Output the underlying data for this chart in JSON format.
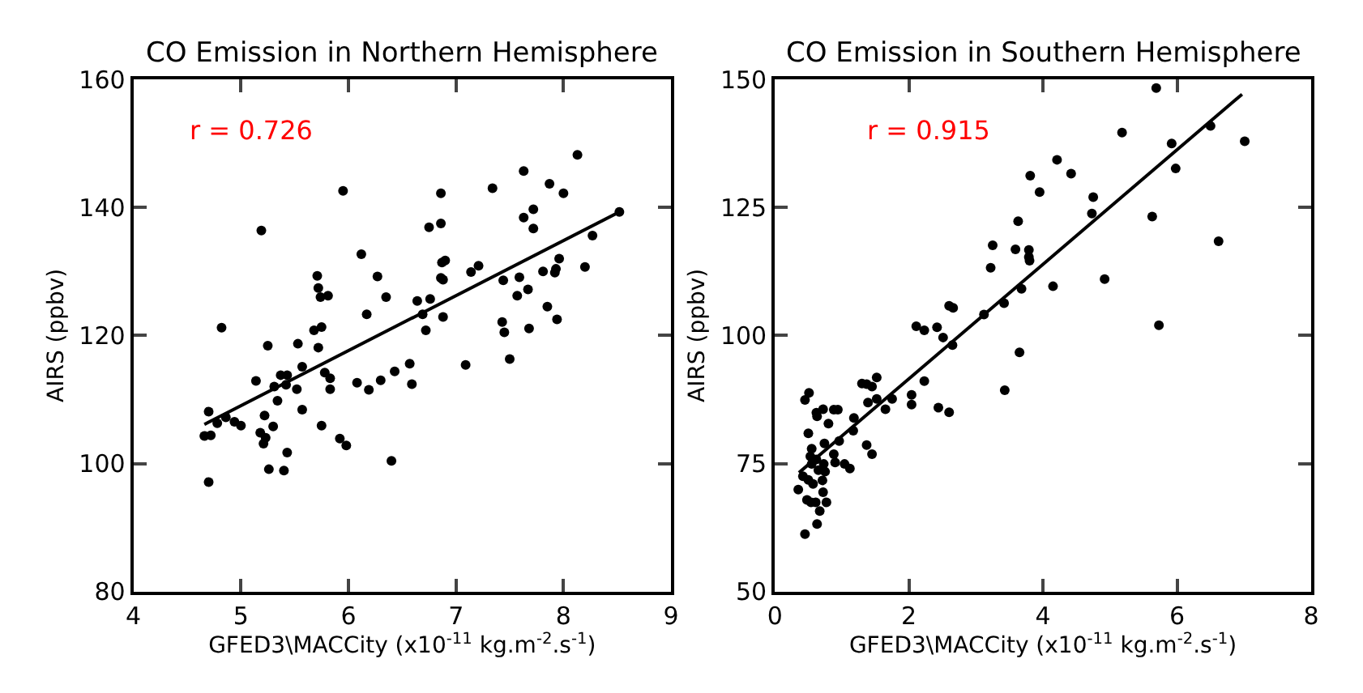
{
  "chart_data": [
    {
      "type": "scatter",
      "title": "CO Emission in Northern Hemisphere",
      "xlabel": "GFED3\\MACCity (x10$^{-11}$ kg.m$^{-2}$.s$^{-1}$)",
      "ylabel": "AIRS (ppbv)",
      "annotations": [
        "r = 0.726"
      ],
      "xlim": [
        4,
        9
      ],
      "xticks": [
        4,
        5,
        6,
        7,
        8,
        9
      ],
      "ylim": [
        80,
        160
      ],
      "yticks": [
        80,
        100,
        120,
        140,
        160
      ],
      "series": [
        {
          "color": "#000000",
          "marker": "circle",
          "x": [
            8.13,
            7.63,
            7.87,
            7.34,
            5.95,
            6.86,
            8.0,
            7.72,
            8.52,
            6.86,
            7.63,
            6.75,
            7.72,
            5.19,
            8.27,
            6.12,
            6.87,
            6.9,
            7.21,
            7.14,
            8.2,
            7.81,
            7.96,
            7.93,
            7.92,
            7.59,
            7.44,
            5.71,
            6.27,
            6.86,
            6.88,
            5.72,
            5.74,
            5.81,
            6.35,
            7.67,
            7.57,
            6.76,
            6.64,
            7.85,
            6.17,
            6.69,
            6.88,
            7.94,
            7.43,
            4.82,
            5.75,
            7.68,
            6.72,
            7.45,
            5.68,
            5.25,
            5.53,
            5.72,
            7.5,
            5.57,
            6.57,
            7.09,
            5.78,
            5.37,
            5.43,
            5.14,
            5.83,
            6.08,
            6.19,
            6.3,
            6.43,
            6.59,
            5.31,
            5.52,
            5.42,
            5.83,
            5.34,
            4.7,
            5.57,
            4.86,
            4.78,
            4.94,
            5.0,
            5.22,
            4.66,
            4.72,
            5.18,
            5.23,
            5.3,
            5.75,
            5.21,
            5.92,
            5.98,
            5.43,
            6.4,
            5.26,
            5.4,
            4.7
          ],
          "values": [
            148.2,
            145.7,
            143.7,
            143.0,
            142.6,
            142.2,
            142.2,
            139.7,
            139.3,
            137.5,
            138.4,
            136.9,
            136.7,
            136.4,
            135.6,
            132.7,
            131.4,
            131.7,
            130.9,
            129.9,
            130.7,
            130.0,
            132.0,
            130.4,
            129.8,
            129.1,
            128.6,
            129.3,
            129.2,
            129.0,
            128.7,
            127.4,
            126.0,
            126.2,
            126.0,
            127.2,
            126.2,
            125.7,
            125.4,
            124.5,
            123.3,
            123.3,
            122.9,
            122.5,
            122.1,
            121.2,
            121.3,
            121.1,
            120.8,
            120.5,
            120.8,
            118.4,
            118.7,
            118.1,
            116.3,
            115.1,
            115.6,
            115.4,
            114.2,
            113.8,
            113.8,
            112.9,
            113.3,
            112.6,
            111.5,
            113.0,
            114.4,
            112.4,
            112.0,
            111.6,
            112.3,
            111.6,
            109.8,
            108.1,
            108.4,
            107.2,
            106.3,
            106.5,
            105.9,
            107.5,
            104.3,
            104.4,
            104.8,
            104.0,
            105.8,
            105.9,
            103.1,
            103.9,
            102.8,
            101.7,
            100.4,
            99.1,
            98.9,
            97.1
          ]
        },
        {
          "type": "line",
          "color": "#000000",
          "x": [
            4.66,
            8.52
          ],
          "values": [
            106.1,
            139.3
          ]
        }
      ]
    },
    {
      "type": "scatter",
      "title": "CO Emission in Southern Hemisphere",
      "xlabel": "GFED3\\MACCity (x10$^{-11}$ kg.m$^{-2}$.s$^{-1}$)",
      "ylabel": "AIRS (ppbv)",
      "annotations": [
        "r = 0.915"
      ],
      "xlim": [
        0,
        8
      ],
      "xticks": [
        0,
        2,
        4,
        6,
        8
      ],
      "ylim": [
        50,
        150
      ],
      "yticks": [
        50,
        75,
        100,
        125,
        150
      ],
      "series": [
        {
          "color": "#000000",
          "marker": "circle",
          "x": [
            5.69,
            5.18,
            6.5,
            5.92,
            7.01,
            4.21,
            3.81,
            4.42,
            5.98,
            3.95,
            4.75,
            4.73,
            5.63,
            3.63,
            3.25,
            6.62,
            3.59,
            3.79,
            3.79,
            3.8,
            3.22,
            4.92,
            4.15,
            3.68,
            3.42,
            2.6,
            2.66,
            3.12,
            2.11,
            2.23,
            2.42,
            2.51,
            5.73,
            2.65,
            3.65,
            2.23,
            3.43,
            2.04,
            2.04,
            2.44,
            2.6,
            1.52,
            1.45,
            1.3,
            1.37,
            1.39,
            1.52,
            1.75,
            1.65,
            1.18,
            1.17,
            0.51,
            0.45,
            0.62,
            0.63,
            0.72,
            0.88,
            0.94,
            0.8,
            0.5,
            0.96,
            0.74,
            1.37,
            0.55,
            0.53,
            0.62,
            0.88,
            1.45,
            0.73,
            0.9,
            1.04,
            1.12,
            0.55,
            0.65,
            0.75,
            0.42,
            0.5,
            0.57,
            0.71,
            0.35,
            0.72,
            0.48,
            0.54,
            0.61,
            0.77,
            0.67,
            0.63,
            0.45
          ],
          "values": [
            148.3,
            139.6,
            140.9,
            137.5,
            137.9,
            134.3,
            131.2,
            131.6,
            132.6,
            128.0,
            127.0,
            123.8,
            123.2,
            122.3,
            117.6,
            118.4,
            116.8,
            116.7,
            115.3,
            114.6,
            113.2,
            111.0,
            109.6,
            109.1,
            106.3,
            105.8,
            105.4,
            104.1,
            101.8,
            101.0,
            101.6,
            99.6,
            102.0,
            98.1,
            96.7,
            91.1,
            89.3,
            88.4,
            86.5,
            85.9,
            85.0,
            91.8,
            90.0,
            90.6,
            90.5,
            86.9,
            87.6,
            87.6,
            85.6,
            83.9,
            81.4,
            88.8,
            87.4,
            84.9,
            84.2,
            85.6,
            85.5,
            85.5,
            82.8,
            80.9,
            79.4,
            78.9,
            78.6,
            77.9,
            76.4,
            75.8,
            76.8,
            76.8,
            74.9,
            75.2,
            74.9,
            74.0,
            74.9,
            73.7,
            73.4,
            72.5,
            71.8,
            71.0,
            71.7,
            69.9,
            69.4,
            67.9,
            67.4,
            67.4,
            67.4,
            65.7,
            63.2,
            61.2
          ]
        },
        {
          "type": "line",
          "color": "#000000",
          "x": [
            0.36,
            6.97
          ],
          "values": [
            73.2,
            147.1
          ]
        }
      ]
    }
  ]
}
